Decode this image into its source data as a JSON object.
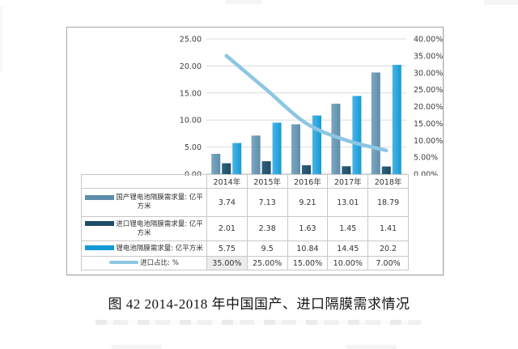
{
  "page": {
    "caption": "图 42 2014-2018 年中国国产、进口隔膜需求情况"
  },
  "colors": {
    "domestic": "#5d8cab",
    "domestic_light": "#7ea8c1",
    "import": "#1e4c66",
    "import_light": "#2f617e",
    "total": "#149ad7",
    "total_light": "#4ab4e4",
    "ratio_line": "#8cc6e2",
    "grid": "#dcdcdc",
    "axis_text": "#3d3d3d",
    "table_border": "#c8c8c8"
  },
  "chart_data": {
    "type": "combo bar+line",
    "categories": [
      "2014年",
      "2015年",
      "2016年",
      "2017年",
      "2018年"
    ],
    "series": [
      {
        "name": "国产锂电池隔膜需求量: 亿平方米",
        "type": "bar",
        "axis": "left",
        "color_key": "domestic",
        "values": [
          3.74,
          7.13,
          9.21,
          13.01,
          18.79
        ],
        "display": [
          "3.74",
          "7.13",
          "9.21",
          "13.01",
          "18.79"
        ]
      },
      {
        "name": "进口锂电池隔膜需求量: 亿平方米",
        "type": "bar",
        "axis": "left",
        "color_key": "import",
        "values": [
          2.01,
          2.38,
          1.63,
          1.45,
          1.41
        ],
        "display": [
          "2.01",
          "2.38",
          "1.63",
          "1.45",
          "1.41"
        ]
      },
      {
        "name": "锂电池隔膜需求量: 亿平方米",
        "type": "bar",
        "axis": "left",
        "color_key": "total",
        "values": [
          5.75,
          9.5,
          10.84,
          14.45,
          20.2
        ],
        "display": [
          "5.75",
          "9.5",
          "10.84",
          "14.45",
          "20.2"
        ]
      },
      {
        "name": "进口占比: %",
        "type": "line",
        "axis": "right",
        "color_key": "ratio_line",
        "values": [
          35,
          25,
          15,
          10,
          7
        ],
        "display": [
          "35.00%",
          "25.00%",
          "15.00%",
          "10.00%",
          "7.00%"
        ]
      }
    ],
    "left_axis": {
      "min": 0,
      "max": 25,
      "step": 5,
      "labels": [
        "0.00",
        "5.00",
        "10.00",
        "15.00",
        "20.00",
        "25.00"
      ]
    },
    "right_axis": {
      "min": 0,
      "max": 40,
      "step": 5,
      "labels": [
        "0.00%",
        "5.00%",
        "10.00%",
        "15.00%",
        "20.00%",
        "25.00%",
        "30.00%",
        "35.00%",
        "40.00%"
      ]
    },
    "grid": true,
    "legend_position": "table-below"
  }
}
